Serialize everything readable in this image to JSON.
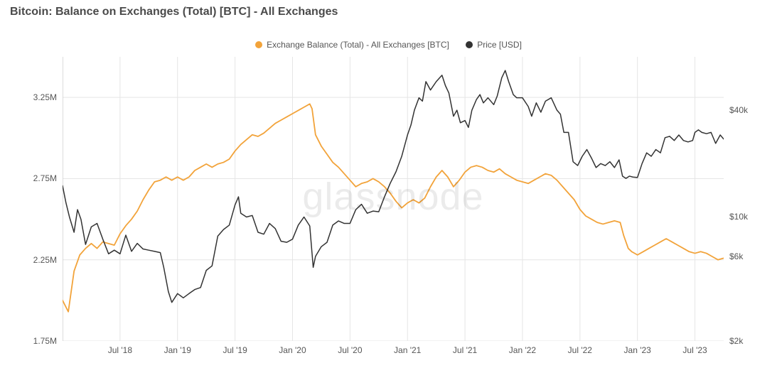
{
  "title": "Bitcoin: Balance on Exchanges (Total) [BTC] - All Exchanges",
  "watermark": "glassnode",
  "legend": {
    "items": [
      {
        "label": "Exchange Balance (Total) - All Exchanges [BTC]",
        "color": "#f2a33a"
      },
      {
        "label": "Price [USD]",
        "color": "#333333"
      }
    ]
  },
  "chart": {
    "type": "line-dual-axis",
    "background_color": "#ffffff",
    "grid_color": "#e5e5e5",
    "x": {
      "domain": [
        2018.0,
        2023.75
      ],
      "ticks": [
        {
          "v": 2018.5,
          "label": "Jul '18"
        },
        {
          "v": 2019.0,
          "label": "Jan '19"
        },
        {
          "v": 2019.5,
          "label": "Jul '19"
        },
        {
          "v": 2020.0,
          "label": "Jan '20"
        },
        {
          "v": 2020.5,
          "label": "Jul '20"
        },
        {
          "v": 2021.0,
          "label": "Jan '21"
        },
        {
          "v": 2021.5,
          "label": "Jul '21"
        },
        {
          "v": 2022.0,
          "label": "Jan '22"
        },
        {
          "v": 2022.5,
          "label": "Jul '22"
        },
        {
          "v": 2023.0,
          "label": "Jan '23"
        },
        {
          "v": 2023.5,
          "label": "Jul '23"
        }
      ]
    },
    "y_left": {
      "label_suffix": "M",
      "scale": "linear",
      "domain": [
        1.75,
        3.5
      ],
      "ticks": [
        {
          "v": 1.75,
          "label": "1.75M"
        },
        {
          "v": 2.25,
          "label": "2.25M"
        },
        {
          "v": 2.75,
          "label": "2.75M"
        },
        {
          "v": 3.25,
          "label": "3.25M"
        }
      ]
    },
    "y_right": {
      "label_prefix": "$",
      "scale": "log",
      "domain": [
        2000,
        80000
      ],
      "ticks": [
        {
          "v": 2000,
          "label": "$2k"
        },
        {
          "v": 6000,
          "label": "$6k"
        },
        {
          "v": 10000,
          "label": "$10k"
        },
        {
          "v": 40000,
          "label": "$40k"
        }
      ]
    },
    "series": [
      {
        "name": "Exchange Balance (Total) - All Exchanges [BTC]",
        "axis": "left",
        "color": "#f2a33a",
        "line_width": 1.8,
        "data": [
          [
            2018.0,
            2.0
          ],
          [
            2018.05,
            1.93
          ],
          [
            2018.1,
            2.18
          ],
          [
            2018.15,
            2.28
          ],
          [
            2018.2,
            2.32
          ],
          [
            2018.25,
            2.35
          ],
          [
            2018.3,
            2.32
          ],
          [
            2018.35,
            2.36
          ],
          [
            2018.4,
            2.35
          ],
          [
            2018.45,
            2.34
          ],
          [
            2018.5,
            2.41
          ],
          [
            2018.55,
            2.46
          ],
          [
            2018.6,
            2.5
          ],
          [
            2018.65,
            2.55
          ],
          [
            2018.7,
            2.62
          ],
          [
            2018.75,
            2.68
          ],
          [
            2018.8,
            2.73
          ],
          [
            2018.85,
            2.74
          ],
          [
            2018.9,
            2.76
          ],
          [
            2018.95,
            2.74
          ],
          [
            2019.0,
            2.76
          ],
          [
            2019.05,
            2.74
          ],
          [
            2019.1,
            2.76
          ],
          [
            2019.15,
            2.8
          ],
          [
            2019.2,
            2.82
          ],
          [
            2019.25,
            2.84
          ],
          [
            2019.3,
            2.82
          ],
          [
            2019.35,
            2.84
          ],
          [
            2019.4,
            2.85
          ],
          [
            2019.45,
            2.87
          ],
          [
            2019.5,
            2.92
          ],
          [
            2019.55,
            2.96
          ],
          [
            2019.6,
            2.99
          ],
          [
            2019.65,
            3.02
          ],
          [
            2019.7,
            3.01
          ],
          [
            2019.75,
            3.03
          ],
          [
            2019.8,
            3.06
          ],
          [
            2019.85,
            3.09
          ],
          [
            2019.9,
            3.11
          ],
          [
            2019.95,
            3.13
          ],
          [
            2020.0,
            3.15
          ],
          [
            2020.05,
            3.17
          ],
          [
            2020.1,
            3.19
          ],
          [
            2020.15,
            3.21
          ],
          [
            2020.17,
            3.18
          ],
          [
            2020.2,
            3.02
          ],
          [
            2020.25,
            2.95
          ],
          [
            2020.3,
            2.9
          ],
          [
            2020.35,
            2.85
          ],
          [
            2020.4,
            2.82
          ],
          [
            2020.45,
            2.78
          ],
          [
            2020.5,
            2.74
          ],
          [
            2020.55,
            2.7
          ],
          [
            2020.6,
            2.72
          ],
          [
            2020.65,
            2.73
          ],
          [
            2020.7,
            2.75
          ],
          [
            2020.75,
            2.73
          ],
          [
            2020.8,
            2.7
          ],
          [
            2020.85,
            2.66
          ],
          [
            2020.9,
            2.61
          ],
          [
            2020.95,
            2.57
          ],
          [
            2021.0,
            2.6
          ],
          [
            2021.05,
            2.62
          ],
          [
            2021.1,
            2.6
          ],
          [
            2021.15,
            2.63
          ],
          [
            2021.2,
            2.7
          ],
          [
            2021.25,
            2.76
          ],
          [
            2021.3,
            2.8
          ],
          [
            2021.35,
            2.76
          ],
          [
            2021.4,
            2.7
          ],
          [
            2021.45,
            2.74
          ],
          [
            2021.5,
            2.79
          ],
          [
            2021.55,
            2.82
          ],
          [
            2021.6,
            2.83
          ],
          [
            2021.65,
            2.82
          ],
          [
            2021.7,
            2.8
          ],
          [
            2021.75,
            2.79
          ],
          [
            2021.8,
            2.81
          ],
          [
            2021.85,
            2.78
          ],
          [
            2021.9,
            2.76
          ],
          [
            2021.95,
            2.74
          ],
          [
            2022.0,
            2.73
          ],
          [
            2022.05,
            2.72
          ],
          [
            2022.1,
            2.74
          ],
          [
            2022.15,
            2.76
          ],
          [
            2022.2,
            2.78
          ],
          [
            2022.25,
            2.77
          ],
          [
            2022.3,
            2.74
          ],
          [
            2022.35,
            2.7
          ],
          [
            2022.4,
            2.66
          ],
          [
            2022.45,
            2.62
          ],
          [
            2022.5,
            2.56
          ],
          [
            2022.55,
            2.52
          ],
          [
            2022.6,
            2.5
          ],
          [
            2022.65,
            2.48
          ],
          [
            2022.7,
            2.47
          ],
          [
            2022.75,
            2.48
          ],
          [
            2022.8,
            2.49
          ],
          [
            2022.85,
            2.48
          ],
          [
            2022.88,
            2.4
          ],
          [
            2022.92,
            2.32
          ],
          [
            2022.95,
            2.3
          ],
          [
            2023.0,
            2.28
          ],
          [
            2023.05,
            2.3
          ],
          [
            2023.1,
            2.32
          ],
          [
            2023.15,
            2.34
          ],
          [
            2023.2,
            2.36
          ],
          [
            2023.25,
            2.38
          ],
          [
            2023.3,
            2.36
          ],
          [
            2023.35,
            2.34
          ],
          [
            2023.4,
            2.32
          ],
          [
            2023.45,
            2.3
          ],
          [
            2023.5,
            2.29
          ],
          [
            2023.55,
            2.3
          ],
          [
            2023.6,
            2.29
          ],
          [
            2023.65,
            2.27
          ],
          [
            2023.7,
            2.25
          ],
          [
            2023.75,
            2.26
          ]
        ]
      },
      {
        "name": "Price [USD]",
        "axis": "right",
        "color": "#333333",
        "line_width": 1.5,
        "data": [
          [
            2018.0,
            15000
          ],
          [
            2018.03,
            12000
          ],
          [
            2018.06,
            10000
          ],
          [
            2018.1,
            8200
          ],
          [
            2018.13,
            11000
          ],
          [
            2018.16,
            9700
          ],
          [
            2018.2,
            7000
          ],
          [
            2018.25,
            8800
          ],
          [
            2018.3,
            9200
          ],
          [
            2018.35,
            7500
          ],
          [
            2018.4,
            6200
          ],
          [
            2018.45,
            6500
          ],
          [
            2018.5,
            6200
          ],
          [
            2018.55,
            7900
          ],
          [
            2018.6,
            6400
          ],
          [
            2018.65,
            7100
          ],
          [
            2018.7,
            6600
          ],
          [
            2018.75,
            6500
          ],
          [
            2018.8,
            6400
          ],
          [
            2018.85,
            6300
          ],
          [
            2018.88,
            5200
          ],
          [
            2018.92,
            3800
          ],
          [
            2018.95,
            3300
          ],
          [
            2019.0,
            3700
          ],
          [
            2019.05,
            3500
          ],
          [
            2019.1,
            3700
          ],
          [
            2019.15,
            3900
          ],
          [
            2019.2,
            4000
          ],
          [
            2019.25,
            5000
          ],
          [
            2019.3,
            5300
          ],
          [
            2019.35,
            7800
          ],
          [
            2019.4,
            8500
          ],
          [
            2019.45,
            9000
          ],
          [
            2019.5,
            11700
          ],
          [
            2019.53,
            13000
          ],
          [
            2019.55,
            10500
          ],
          [
            2019.6,
            10000
          ],
          [
            2019.65,
            10200
          ],
          [
            2019.7,
            8200
          ],
          [
            2019.75,
            8000
          ],
          [
            2019.8,
            9200
          ],
          [
            2019.85,
            8600
          ],
          [
            2019.9,
            7300
          ],
          [
            2019.95,
            7200
          ],
          [
            2020.0,
            7500
          ],
          [
            2020.05,
            9000
          ],
          [
            2020.1,
            10000
          ],
          [
            2020.15,
            8900
          ],
          [
            2020.18,
            5200
          ],
          [
            2020.2,
            6000
          ],
          [
            2020.25,
            6800
          ],
          [
            2020.3,
            7200
          ],
          [
            2020.35,
            9000
          ],
          [
            2020.4,
            9500
          ],
          [
            2020.45,
            9200
          ],
          [
            2020.5,
            9200
          ],
          [
            2020.55,
            11000
          ],
          [
            2020.6,
            11800
          ],
          [
            2020.65,
            10500
          ],
          [
            2020.7,
            10800
          ],
          [
            2020.75,
            10700
          ],
          [
            2020.8,
            13000
          ],
          [
            2020.85,
            15500
          ],
          [
            2020.9,
            18000
          ],
          [
            2020.95,
            22000
          ],
          [
            2021.0,
            29000
          ],
          [
            2021.03,
            33000
          ],
          [
            2021.06,
            40000
          ],
          [
            2021.1,
            47000
          ],
          [
            2021.13,
            45000
          ],
          [
            2021.16,
            58000
          ],
          [
            2021.2,
            52000
          ],
          [
            2021.25,
            58000
          ],
          [
            2021.3,
            63000
          ],
          [
            2021.33,
            55000
          ],
          [
            2021.36,
            50000
          ],
          [
            2021.4,
            37000
          ],
          [
            2021.43,
            40000
          ],
          [
            2021.46,
            34000
          ],
          [
            2021.5,
            35000
          ],
          [
            2021.53,
            32000
          ],
          [
            2021.56,
            40000
          ],
          [
            2021.6,
            46000
          ],
          [
            2021.63,
            49000
          ],
          [
            2021.66,
            44000
          ],
          [
            2021.7,
            47000
          ],
          [
            2021.75,
            43000
          ],
          [
            2021.78,
            48000
          ],
          [
            2021.82,
            61000
          ],
          [
            2021.85,
            67000
          ],
          [
            2021.88,
            58000
          ],
          [
            2021.92,
            49000
          ],
          [
            2021.95,
            47000
          ],
          [
            2022.0,
            47000
          ],
          [
            2022.05,
            42000
          ],
          [
            2022.08,
            37000
          ],
          [
            2022.12,
            44000
          ],
          [
            2022.16,
            39000
          ],
          [
            2022.2,
            45000
          ],
          [
            2022.25,
            47000
          ],
          [
            2022.3,
            40000
          ],
          [
            2022.33,
            38000
          ],
          [
            2022.36,
            30000
          ],
          [
            2022.4,
            30000
          ],
          [
            2022.44,
            20500
          ],
          [
            2022.48,
            19500
          ],
          [
            2022.52,
            22000
          ],
          [
            2022.56,
            24000
          ],
          [
            2022.6,
            21500
          ],
          [
            2022.64,
            19000
          ],
          [
            2022.68,
            20000
          ],
          [
            2022.72,
            19500
          ],
          [
            2022.76,
            20500
          ],
          [
            2022.8,
            19000
          ],
          [
            2022.84,
            21000
          ],
          [
            2022.87,
            17000
          ],
          [
            2022.9,
            16500
          ],
          [
            2022.93,
            17000
          ],
          [
            2022.96,
            16800
          ],
          [
            2023.0,
            16700
          ],
          [
            2023.04,
            20000
          ],
          [
            2023.08,
            23000
          ],
          [
            2023.12,
            22000
          ],
          [
            2023.16,
            24000
          ],
          [
            2023.2,
            23000
          ],
          [
            2023.24,
            28000
          ],
          [
            2023.28,
            28500
          ],
          [
            2023.32,
            27000
          ],
          [
            2023.36,
            29000
          ],
          [
            2023.4,
            27000
          ],
          [
            2023.44,
            26500
          ],
          [
            2023.48,
            27000
          ],
          [
            2023.5,
            30000
          ],
          [
            2023.53,
            31000
          ],
          [
            2023.56,
            30000
          ],
          [
            2023.6,
            29500
          ],
          [
            2023.64,
            30000
          ],
          [
            2023.68,
            26000
          ],
          [
            2023.72,
            29000
          ],
          [
            2023.75,
            27500
          ]
        ]
      }
    ]
  }
}
